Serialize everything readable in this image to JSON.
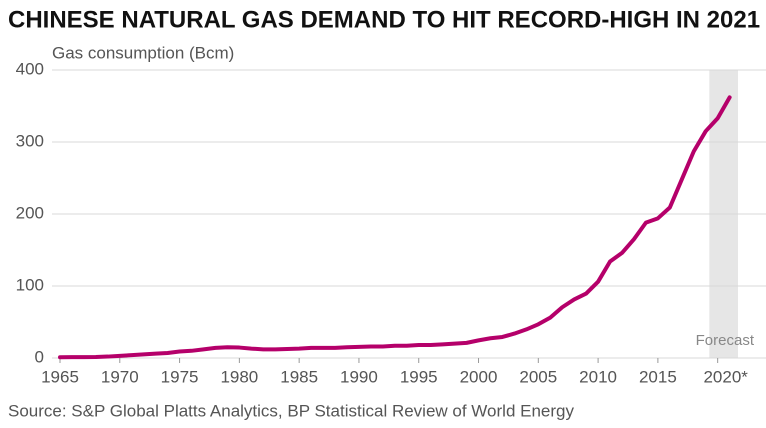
{
  "chart_data": {
    "type": "line",
    "title": "CHINESE NATURAL GAS DEMAND TO HIT RECORD-HIGH IN 2021",
    "y_label": "Gas consumption (Bcm)",
    "source": "Source: S&P Global Platts Analytics, BP Statistical Review of World Energy",
    "annotation": "Forecast",
    "forecast_from": 2019.3,
    "x": [
      1965,
      1966,
      1967,
      1968,
      1969,
      1970,
      1971,
      1972,
      1973,
      1974,
      1975,
      1976,
      1977,
      1978,
      1979,
      1980,
      1981,
      1982,
      1983,
      1984,
      1985,
      1986,
      1987,
      1988,
      1989,
      1990,
      1991,
      1992,
      1993,
      1994,
      1995,
      1996,
      1997,
      1998,
      1999,
      2000,
      2001,
      2002,
      2003,
      2004,
      2005,
      2006,
      2007,
      2008,
      2009,
      2010,
      2011,
      2012,
      2013,
      2014,
      2015,
      2016,
      2017,
      2018,
      2019,
      2020,
      2021
    ],
    "series": [
      {
        "name": "Gas consumption",
        "color": "#b5006a",
        "values": [
          1,
          1.2,
          1.3,
          1.4,
          2,
          3,
          4,
          5,
          6,
          7,
          9,
          10,
          12,
          14,
          15,
          14.5,
          13,
          12,
          12,
          12.5,
          13,
          14,
          14,
          14,
          15,
          15.5,
          16,
          16,
          17,
          17,
          18,
          18,
          19,
          20,
          21,
          24.5,
          27.4,
          29.2,
          33.9,
          39.7,
          46.8,
          56.1,
          70.5,
          81.3,
          89.5,
          106,
          134,
          146,
          165,
          188,
          194,
          209,
          248,
          287,
          315,
          333,
          362
        ]
      }
    ],
    "xlim": [
      1965,
      2021.7
    ],
    "ylim": [
      0,
      400
    ],
    "xticks": [
      1965,
      1970,
      1975,
      1980,
      1985,
      1990,
      1995,
      2000,
      2005,
      2010,
      2015,
      {
        "value": 2020,
        "label": "2020*"
      }
    ],
    "yticks": [
      0,
      100,
      200,
      300,
      400
    ],
    "grid": true
  }
}
